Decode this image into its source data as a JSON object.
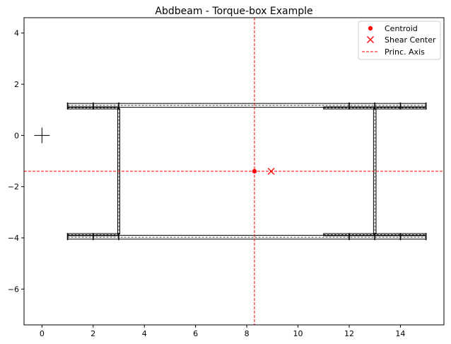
{
  "chart_data": {
    "type": "line",
    "title": "Abdbeam - Torque-box Example",
    "xlabel": "",
    "ylabel": "",
    "xlim": [
      -0.7,
      15.7
    ],
    "ylim": [
      -7.4,
      4.6
    ],
    "xticks": [
      0,
      2,
      4,
      6,
      8,
      10,
      12,
      14
    ],
    "yticks": [
      -6,
      -4,
      -2,
      0,
      2,
      4
    ],
    "xtick_labels": [
      "0",
      "2",
      "4",
      "6",
      "8",
      "10",
      "12",
      "14"
    ],
    "ytick_labels": [
      "−6",
      "−4",
      "−2",
      "0",
      "2",
      "4"
    ],
    "grid": false,
    "legend_position": "top-right",
    "legend": [
      "Centroid",
      "Shear Center",
      "Princ. Axis"
    ],
    "colors": {
      "structure": "#000000",
      "centroid": "#ff0000",
      "shear_center": "#ff0000",
      "princ_axis": "#ff0000"
    },
    "centroid": {
      "x": 8.3,
      "y": -1.4
    },
    "shear_center": {
      "x": 8.95,
      "y": -1.4
    },
    "principal_axes": {
      "vertical_x": 8.3,
      "horizontal_y": -1.4
    },
    "reference_origin": {
      "x": 0,
      "y": 0
    },
    "plies": [
      {
        "name": "top-skin",
        "x": [
          1,
          15
        ],
        "y": 1.175,
        "thickness": 0.15
      },
      {
        "name": "top-left-cap",
        "x": [
          1,
          3
        ],
        "y": 1.075,
        "thickness": 0.05
      },
      {
        "name": "top-right-cap",
        "x": [
          11,
          15
        ],
        "y": 1.075,
        "thickness": 0.05
      },
      {
        "name": "bottom-skin",
        "x": [
          1,
          15
        ],
        "y": -3.975,
        "thickness": 0.15
      },
      {
        "name": "bottom-left-cap",
        "x": [
          1,
          3
        ],
        "y": -3.875,
        "thickness": 0.05
      },
      {
        "name": "bottom-right-cap",
        "x": [
          11,
          15
        ],
        "y": -3.875,
        "thickness": 0.05
      }
    ],
    "webs": [
      {
        "name": "left-web",
        "x": 3,
        "y": [
          -3.85,
          1.05
        ],
        "thickness": 0.06
      },
      {
        "name": "right-web",
        "x": 13,
        "y": [
          -3.85,
          1.05
        ],
        "thickness": 0.1
      }
    ],
    "points": [
      {
        "x": 1,
        "y": 1.15
      },
      {
        "x": 2,
        "y": 1.15
      },
      {
        "x": 3,
        "y": 1.15
      },
      {
        "x": 12,
        "y": 1.15
      },
      {
        "x": 13,
        "y": 1.15
      },
      {
        "x": 14,
        "y": 1.15
      },
      {
        "x": 15,
        "y": 1.15
      },
      {
        "x": 1,
        "y": -3.95
      },
      {
        "x": 2,
        "y": -3.95
      },
      {
        "x": 3,
        "y": -3.95
      },
      {
        "x": 12,
        "y": -3.95
      },
      {
        "x": 13,
        "y": -3.95
      },
      {
        "x": 14,
        "y": -3.95
      },
      {
        "x": 15,
        "y": -3.95
      }
    ]
  }
}
